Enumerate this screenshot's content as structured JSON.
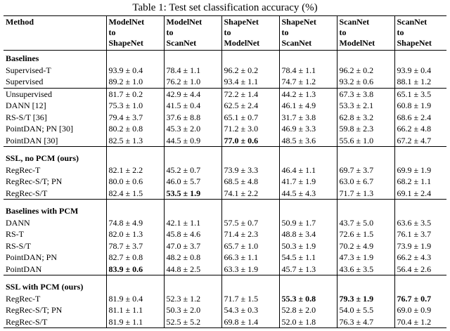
{
  "title": "Table 1: Test set classification accuracy (%)",
  "table": {
    "method_header": "Method",
    "columns": [
      [
        "ModelNet",
        "to",
        "ShapeNet"
      ],
      [
        "ModelNet",
        "to",
        "ScanNet"
      ],
      [
        "ShapeNet",
        "to",
        "ModelNet"
      ],
      [
        "ShapeNet",
        "to",
        "ScanNet"
      ],
      [
        "ScanNet",
        "to",
        "ModelNet"
      ],
      [
        "ScanNet",
        "to",
        "ShapeNet"
      ]
    ],
    "groups": [
      {
        "header": "Baselines",
        "rows": [
          {
            "method": "Supervised-T",
            "values": [
              "93.9 ± 0.4",
              "78.4 ± 1.1",
              "96.2 ± 0.2",
              "78.4 ± 1.1",
              "96.2 ± 0.2",
              "93.9 ± 0.4"
            ],
            "bold": []
          },
          {
            "method": "Supervised",
            "values": [
              "89.2 ± 1.0",
              "76.2 ± 1.0",
              "93.4 ± 1.1",
              "74.7 ± 1.2",
              "93.2 ± 0.6",
              "88.1 ± 1.2"
            ],
            "bold": []
          }
        ]
      },
      {
        "header": "",
        "rows": [
          {
            "method": "Unsupervised",
            "values": [
              "81.7 ± 0.2",
              "42.9 ± 4.4",
              "72.2 ± 1.4",
              "44.2 ± 1.3",
              "67.3 ± 3.8",
              "65.1 ± 3.5"
            ],
            "bold": []
          },
          {
            "method": "DANN [12]",
            "values": [
              "75.3 ± 1.0",
              "41.5 ± 0.4",
              "62.5 ± 2.4",
              "46.1 ± 4.9",
              "53.3 ± 2.1",
              "60.8 ± 1.9"
            ],
            "bold": []
          },
          {
            "method": "RS-S/T [36]",
            "values": [
              "79.4 ± 3.7",
              "37.6 ± 8.8",
              "65.1 ± 0.7",
              "31.7 ± 3.8",
              "62.8 ± 3.2",
              "68.6 ± 2.4"
            ],
            "bold": []
          },
          {
            "method": "PointDAN; PN [30]",
            "values": [
              "80.2 ± 0.8",
              "45.3 ± 2.0",
              "71.2 ± 3.0",
              "46.9 ± 3.3",
              "59.8 ± 2.3",
              "66.2 ± 4.8"
            ],
            "bold": []
          },
          {
            "method": "PointDAN [30]",
            "values": [
              "82.5 ± 1.3",
              "44.5 ± 0.9",
              "77.0 ± 0.6",
              "48.5 ± 3.6",
              "55.6 ± 1.0",
              "67.2 ± 4.7"
            ],
            "bold": [
              2
            ]
          }
        ]
      },
      {
        "header": "SSL, no PCM (ours)",
        "rows": [
          {
            "method": "RegRec-T",
            "values": [
              "82.1 ± 2.2",
              "45.2 ± 0.7",
              "73.9 ± 3.3",
              "46.4 ± 1.1",
              "69.7 ± 3.7",
              "69.9 ± 1.9"
            ],
            "bold": []
          },
          {
            "method": "RegRec-S/T; PN",
            "values": [
              "80.0 ± 0.6",
              "46.0 ± 5.7",
              "68.5 ± 4.8",
              "41.7 ± 1.9",
              "63.0 ± 6.7",
              "68.2 ± 1.1"
            ],
            "bold": []
          },
          {
            "method": "RegRec-S/T",
            "values": [
              "82.4 ± 1.5",
              "53.5 ± 1.9",
              "74.1 ± 2.2",
              "44.5 ± 4.3",
              "71.7 ± 1.3",
              "69.1 ± 2.4"
            ],
            "bold": [
              1
            ]
          }
        ]
      },
      {
        "header": "Baselines with PCM",
        "rows": [
          {
            "method": "DANN",
            "values": [
              "74.8 ± 4.9",
              "42.1 ± 1.1",
              "57.5 ± 0.7",
              "50.9 ± 1.7",
              "43.7 ± 5.0",
              "63.6 ± 3.5"
            ],
            "bold": []
          },
          {
            "method": "RS-T",
            "values": [
              "82.0 ± 1.3",
              "45.8 ± 4.6",
              "71.4 ± 2.3",
              "48.8 ± 3.4",
              "72.6 ± 1.5",
              "76.1 ± 3.7"
            ],
            "bold": []
          },
          {
            "method": "RS-S/T",
            "values": [
              "78.7 ± 3.7",
              "47.0 ± 3.7",
              "65.7 ± 1.0",
              "50.3 ± 1.9",
              "70.2 ± 4.9",
              "73.9 ± 1.9"
            ],
            "bold": []
          },
          {
            "method": "PointDAN; PN",
            "values": [
              "82.7 ± 0.8",
              "48.2 ± 0.8",
              "66.3 ± 1.1",
              "54.5 ± 1.1",
              "47.3 ± 1.9",
              "66.2 ± 4.3"
            ],
            "bold": []
          },
          {
            "method": "PointDAN",
            "values": [
              "83.9 ± 0.6",
              "44.8 ± 2.5",
              "63.3 ± 1.9",
              "45.7 ± 1.3",
              "43.6 ± 3.5",
              "56.4 ± 2.6"
            ],
            "bold": [
              0
            ]
          }
        ]
      },
      {
        "header": "SSL with PCM (ours)",
        "rows": [
          {
            "method": "RegRec-T",
            "values": [
              "81.9 ± 0.4",
              "52.3 ± 1.2",
              "71.7 ± 1.5",
              "55.3 ± 0.8",
              "79.3 ± 1.9",
              "76.7 ± 0.7"
            ],
            "bold": [
              3,
              4,
              5
            ]
          },
          {
            "method": "RegRec-S/T; PN",
            "values": [
              "81.1 ± 1.1",
              "50.3 ± 2.0",
              "54.3 ± 0.3",
              "52.8 ± 2.0",
              "54.0 ± 5.5",
              "69.0 ± 0.9"
            ],
            "bold": []
          },
          {
            "method": "RegRec-S/T",
            "values": [
              "81.9 ± 1.1",
              "52.5 ± 5.2",
              "69.8 ± 1.4",
              "52.0 ± 1.8",
              "76.3 ± 4.7",
              "70.4 ± 1.2"
            ],
            "bold": []
          }
        ]
      }
    ]
  }
}
